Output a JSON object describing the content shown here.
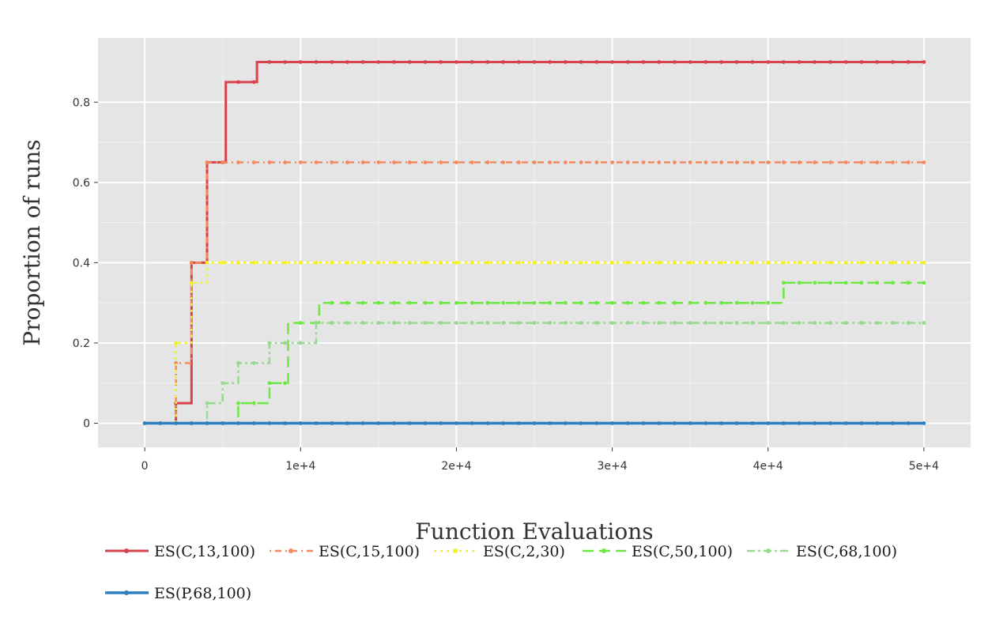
{
  "chart_data": {
    "type": "line",
    "step": true,
    "xlabel": "Function Evaluations",
    "ylabel": "Proportion of runs",
    "xlim": [
      -3000,
      53000
    ],
    "ylim": [
      -0.06,
      0.96
    ],
    "x_ticks": [
      0,
      10000,
      20000,
      30000,
      40000,
      50000
    ],
    "x_tick_labels": [
      "0",
      "1e+4",
      "2e+4",
      "3e+4",
      "4e+4",
      "5e+4"
    ],
    "y_ticks": [
      0,
      0.2,
      0.4,
      0.6,
      0.8
    ],
    "y_tick_labels": [
      "0",
      "0.2",
      "0.4",
      "0.6",
      "0.8"
    ],
    "grid": true,
    "legend_position": "bottom",
    "series": [
      {
        "name": "ES(C,13,100)",
        "color": "#d7424f",
        "dash": "solid",
        "width": 3,
        "steps": [
          [
            0,
            0
          ],
          [
            2000,
            0.05
          ],
          [
            3000,
            0.4
          ],
          [
            4000,
            0.65
          ],
          [
            5200,
            0.85
          ],
          [
            7200,
            0.9
          ],
          [
            50000,
            0.9
          ]
        ]
      },
      {
        "name": "ES(C,15,100)",
        "color": "#f4895e",
        "dash": "dotdash",
        "width": 2.5,
        "steps": [
          [
            0,
            0
          ],
          [
            2000,
            0.15
          ],
          [
            3000,
            0.4
          ],
          [
            4000,
            0.65
          ],
          [
            50000,
            0.65
          ]
        ]
      },
      {
        "name": "ES(C,2,30)",
        "color": "#f5f11e",
        "dash": "dotted",
        "width": 2.5,
        "steps": [
          [
            0,
            0
          ],
          [
            2000,
            0.2
          ],
          [
            3000,
            0.35
          ],
          [
            4000,
            0.4
          ],
          [
            50000,
            0.4
          ]
        ]
      },
      {
        "name": "ES(C,50,100)",
        "color": "#6ce842",
        "dash": "longdash",
        "width": 2.5,
        "steps": [
          [
            0,
            0
          ],
          [
            6000,
            0.05
          ],
          [
            8000,
            0.1
          ],
          [
            9200,
            0.25
          ],
          [
            11200,
            0.3
          ],
          [
            41000,
            0.35
          ],
          [
            50000,
            0.35
          ]
        ]
      },
      {
        "name": "ES(C,68,100)",
        "color": "#99d890",
        "dash": "twodash",
        "width": 2.5,
        "steps": [
          [
            0,
            0
          ],
          [
            4000,
            0.05
          ],
          [
            5000,
            0.1
          ],
          [
            6000,
            0.15
          ],
          [
            8000,
            0.2
          ],
          [
            11000,
            0.25
          ],
          [
            50000,
            0.25
          ]
        ]
      },
      {
        "name": "ES(P,68,100)",
        "color": "#2e7fbf",
        "dash": "solid",
        "width": 3.5,
        "steps": [
          [
            0,
            0
          ],
          [
            50000,
            0
          ]
        ]
      }
    ]
  }
}
